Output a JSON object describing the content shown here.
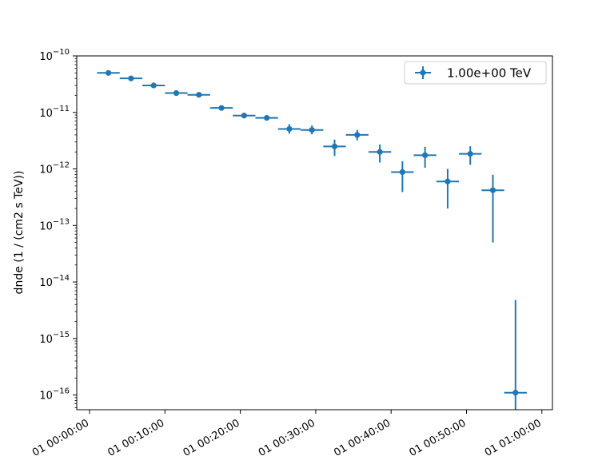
{
  "chart_data": {
    "type": "scatter",
    "title": "",
    "xlabel": "",
    "ylabel": "dnde (1 / (cm2 s TeV))",
    "y_scale": "log",
    "ylim": [
      5.5e-17,
      1e-10
    ],
    "xlim_minutes": [
      -1.7,
      61.4
    ],
    "x_tick_labels": [
      "01 00:00:00",
      "01 00:10:00",
      "01 00:20:00",
      "01 00:30:00",
      "01 00:40:00",
      "01 00:50:00",
      "01 01:00:00"
    ],
    "x_tick_minutes": [
      0,
      10,
      20,
      30,
      40,
      50,
      60
    ],
    "y_tick_labels": [
      {
        "base": "10",
        "exp": "−10"
      },
      {
        "base": "10",
        "exp": "−11"
      },
      {
        "base": "10",
        "exp": "−12"
      },
      {
        "base": "10",
        "exp": "−13"
      },
      {
        "base": "10",
        "exp": "−14"
      },
      {
        "base": "10",
        "exp": "−15"
      },
      {
        "base": "10",
        "exp": "−16"
      }
    ],
    "y_tick_values": [
      1e-10,
      1e-11,
      1e-12,
      1e-13,
      1e-14,
      1e-15,
      1e-16
    ],
    "legend_position": "top-right",
    "grid": false,
    "color": "#1f77b4",
    "series": [
      {
        "name": "1.00e+00 TeV",
        "points": [
          {
            "t_min": 2.5,
            "t_halfwidth": 1.5,
            "y": 5e-11,
            "y_low": 4.8e-11,
            "y_high": 5.2e-11
          },
          {
            "t_min": 5.5,
            "t_halfwidth": 1.5,
            "y": 4e-11,
            "y_low": 3.8e-11,
            "y_high": 4.2e-11
          },
          {
            "t_min": 8.5,
            "t_halfwidth": 1.5,
            "y": 3e-11,
            "y_low": 2.85e-11,
            "y_high": 3.15e-11
          },
          {
            "t_min": 11.5,
            "t_halfwidth": 1.5,
            "y": 2.2e-11,
            "y_low": 2.08e-11,
            "y_high": 2.32e-11
          },
          {
            "t_min": 14.5,
            "t_halfwidth": 1.5,
            "y": 2.05e-11,
            "y_low": 1.93e-11,
            "y_high": 2.17e-11
          },
          {
            "t_min": 17.5,
            "t_halfwidth": 1.5,
            "y": 1.2e-11,
            "y_low": 1.12e-11,
            "y_high": 1.28e-11
          },
          {
            "t_min": 20.5,
            "t_halfwidth": 1.5,
            "y": 8.8e-12,
            "y_low": 7.9e-12,
            "y_high": 9.8e-12
          },
          {
            "t_min": 23.5,
            "t_halfwidth": 1.5,
            "y": 8e-12,
            "y_low": 7.2e-12,
            "y_high": 8.9e-12
          },
          {
            "t_min": 26.5,
            "t_halfwidth": 1.5,
            "y": 5.1e-12,
            "y_low": 4.2e-12,
            "y_high": 6.2e-12
          },
          {
            "t_min": 29.5,
            "t_halfwidth": 1.5,
            "y": 4.9e-12,
            "y_low": 4.1e-12,
            "y_high": 5.9e-12
          },
          {
            "t_min": 32.5,
            "t_halfwidth": 1.5,
            "y": 2.5e-12,
            "y_low": 1.7e-12,
            "y_high": 3.3e-12
          },
          {
            "t_min": 35.5,
            "t_halfwidth": 1.5,
            "y": 4e-12,
            "y_low": 3.2e-12,
            "y_high": 4.9e-12
          },
          {
            "t_min": 38.5,
            "t_halfwidth": 1.5,
            "y": 2e-12,
            "y_low": 1.3e-12,
            "y_high": 2.7e-12
          },
          {
            "t_min": 41.5,
            "t_halfwidth": 1.5,
            "y": 8.8e-13,
            "y_low": 3.9e-13,
            "y_high": 1.37e-12
          },
          {
            "t_min": 44.5,
            "t_halfwidth": 1.5,
            "y": 1.75e-12,
            "y_low": 1.05e-12,
            "y_high": 2.45e-12
          },
          {
            "t_min": 47.5,
            "t_halfwidth": 1.5,
            "y": 6e-13,
            "y_low": 2e-13,
            "y_high": 1e-12
          },
          {
            "t_min": 50.5,
            "t_halfwidth": 1.5,
            "y": 1.85e-12,
            "y_low": 1.18e-12,
            "y_high": 2.52e-12
          },
          {
            "t_min": 53.5,
            "t_halfwidth": 1.5,
            "y": 4.2e-13,
            "y_low": 5e-14,
            "y_high": 7.9e-13
          },
          {
            "t_min": 56.5,
            "t_halfwidth": 1.5,
            "y": 1.1e-16,
            "y_low": 5.5e-17,
            "y_high": 4.8e-15
          }
        ]
      }
    ]
  }
}
